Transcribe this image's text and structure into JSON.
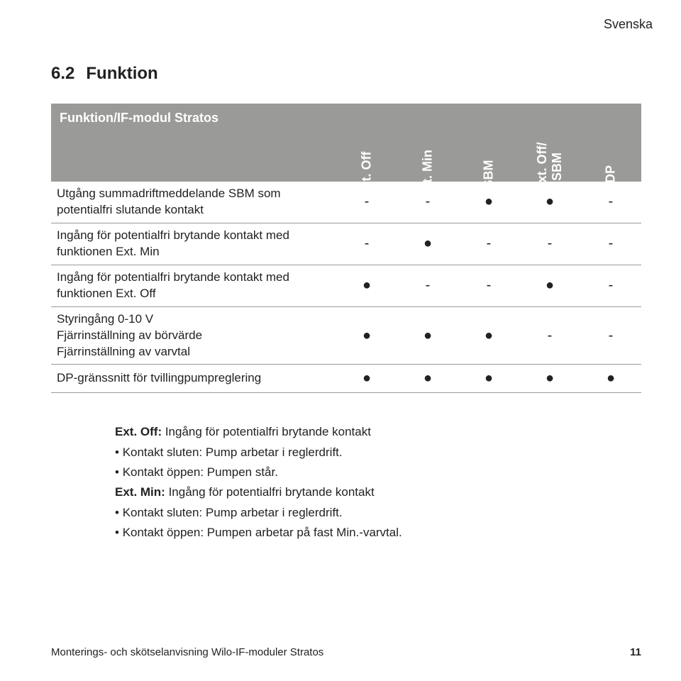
{
  "language_label": "Svenska",
  "section_number": "6.2",
  "section_title": "Funktion",
  "table": {
    "header_title": "Funktion/IF-modul Stratos",
    "columns": [
      "Ext. Off",
      "Ext. Min",
      "SBM",
      "Ext. Off/\nSBM",
      "DP"
    ],
    "rows": [
      {
        "label": "Utgång summadriftmeddelande SBM som potentialfri slutande kontakt",
        "cells": [
          "-",
          "-",
          "●",
          "●",
          "-"
        ]
      },
      {
        "label": "Ingång för potentialfri brytande kontakt med funktionen Ext. Min",
        "cells": [
          "-",
          "●",
          "-",
          "-",
          "-"
        ]
      },
      {
        "label": "Ingång för potentialfri brytande kontakt med funktionen Ext. Off",
        "cells": [
          "●",
          "-",
          "-",
          "●",
          "-"
        ]
      },
      {
        "label": "Styringång 0-10 V\nFjärrinställning av börvärde\nFjärrinställning av varvtal",
        "cells": [
          "●",
          "●",
          "●",
          "-",
          "-"
        ]
      },
      {
        "label": "DP-gränssnitt för tvillingpumpreglering",
        "cells": [
          "●",
          "●",
          "●",
          "●",
          "●"
        ]
      }
    ]
  },
  "description": {
    "lines": [
      {
        "bold_prefix": "Ext. Off:",
        "text": " Ingång för potentialfri brytande kontakt",
        "bullet": false
      },
      {
        "text": "Kontakt sluten: Pump arbetar i reglerdrift.",
        "bullet": true
      },
      {
        "text": "Kontakt öppen: Pumpen står.",
        "bullet": true
      },
      {
        "bold_prefix": "Ext. Min:",
        "text": " Ingång för potentialfri brytande kontakt",
        "bullet": false
      },
      {
        "text": "Kontakt sluten: Pump arbetar i reglerdrift.",
        "bullet": true
      },
      {
        "text": "Kontakt öppen: Pumpen arbetar på fast Min.-varvtal.",
        "bullet": true
      }
    ]
  },
  "footer_text": "Monterings- och skötselanvisning Wilo-IF-moduler Stratos",
  "footer_page": "11"
}
